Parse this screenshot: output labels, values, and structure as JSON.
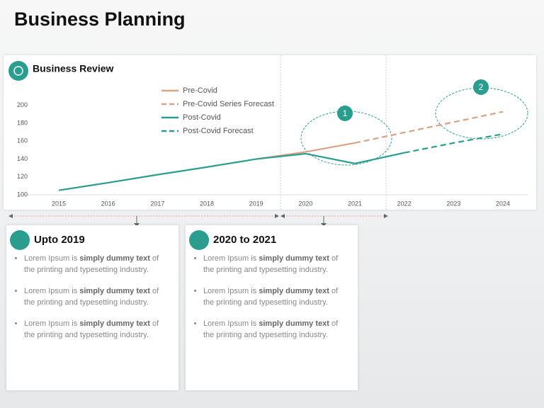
{
  "header": {
    "title": "Business Planning"
  },
  "chart_data": {
    "type": "line",
    "title": "Business Review",
    "categories": [
      "2015",
      "2016",
      "2017",
      "2018",
      "2019",
      "2020",
      "2021",
      "2022",
      "2023",
      "2024"
    ],
    "series": [
      {
        "name": "Pre-Covid",
        "color": "#d9a285",
        "dashed": false,
        "values": [
          null,
          null,
          null,
          null,
          140,
          148,
          158,
          null,
          null,
          null
        ]
      },
      {
        "name": "Pre-Covid Series Forecast",
        "color": "#d9a285",
        "dashed": true,
        "values": [
          null,
          null,
          null,
          null,
          null,
          null,
          158,
          169.7,
          181.3,
          193
        ]
      },
      {
        "name": "Post-Covid",
        "color": "#2a9d8f",
        "dashed": false,
        "values": [
          105,
          113.5,
          122.5,
          131,
          140,
          146,
          135,
          147,
          null,
          null
        ]
      },
      {
        "name": "Post-Covid Forecast",
        "color": "#2a9d8f",
        "dashed": true,
        "values": [
          null,
          null,
          null,
          null,
          null,
          null,
          null,
          147,
          158,
          168
        ]
      }
    ],
    "ylim": [
      100,
      230
    ],
    "yticks": [
      100,
      120,
      140,
      160,
      180,
      200
    ],
    "grid": false,
    "annotations": [
      {
        "label": "1"
      },
      {
        "label": "2"
      }
    ]
  },
  "cards": [
    {
      "title": "Upto 2019",
      "bullets": [
        {
          "pre": "Lorem Ipsum is ",
          "bold": "simply dummy text",
          "post": " of the printing and typesetting industry."
        },
        {
          "pre": "Lorem Ipsum is ",
          "bold": "simply dummy text",
          "post": " of the printing and typesetting industry."
        },
        {
          "pre": "Lorem Ipsum is ",
          "bold": "simply dummy text",
          "post": " of the printing and typesetting industry."
        }
      ]
    },
    {
      "title": "2020 to 2021",
      "bullets": [
        {
          "pre": "Lorem Ipsum is ",
          "bold": "simply dummy text",
          "post": " of the printing and typesetting industry."
        },
        {
          "pre": "Lorem Ipsum is ",
          "bold": "simply dummy text",
          "post": " of the printing and typesetting industry."
        },
        {
          "pre": "Lorem Ipsum is ",
          "bold": "simply dummy text",
          "post": " of the printing and typesetting industry."
        }
      ]
    }
  ]
}
